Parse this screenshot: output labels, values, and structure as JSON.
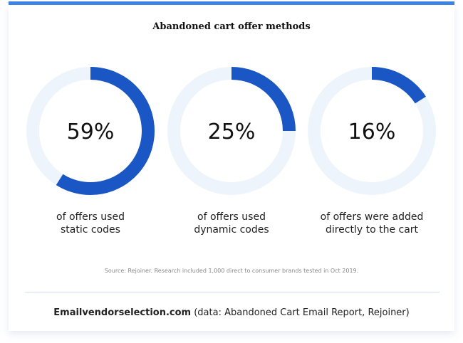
{
  "chart_data": {
    "type": "donut",
    "title": "Abandoned cart offer methods",
    "items": [
      {
        "value": 59,
        "value_label": "59%",
        "label_lines": [
          "of offers used",
          "static codes"
        ]
      },
      {
        "value": 25,
        "value_label": "25%",
        "label_lines": [
          "of offers used",
          "dynamic codes"
        ]
      },
      {
        "value": 16,
        "value_label": "16%",
        "label_lines": [
          "of offers were added",
          "directly to the cart"
        ]
      }
    ],
    "colors": {
      "fill": "#1a56c4",
      "track": "#eef4fc",
      "accent_bar": "#3a82e4"
    },
    "source": "Source: Rejoiner. Research included 1,000 direct to consumer brands tested in Oct 2019."
  },
  "footer": {
    "brand": "Emailvendorselection.com",
    "note": " (data: Abandoned Cart Email Report, Rejoiner)"
  }
}
